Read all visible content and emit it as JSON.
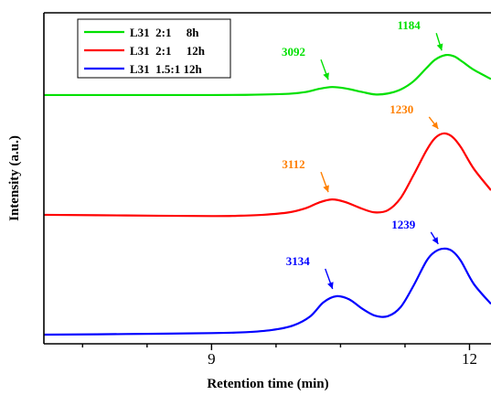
{
  "chart_data": {
    "type": "line",
    "xlabel": "Retention time (min)",
    "ylabel": "Intensity (a.u.)",
    "xlim": [
      7.05,
      12.25
    ],
    "ylim": [
      0,
      1
    ],
    "x_ticks": [
      9,
      12
    ],
    "x_tick_labels": [
      "9",
      "12"
    ],
    "y_ticks_shown": false,
    "grid": false,
    "legend_position": "top-left",
    "series": [
      {
        "name": "L31  2:1     8h",
        "color": "#00e000",
        "x": [
          7.05,
          8.0,
          9.0,
          9.5,
          9.9,
          10.1,
          10.25,
          10.4,
          10.55,
          10.75,
          10.9,
          11.05,
          11.2,
          11.35,
          11.5,
          11.6,
          11.72,
          11.82,
          11.92,
          12.05,
          12.25
        ],
        "y": [
          0.78,
          0.78,
          0.78,
          0.781,
          0.784,
          0.79,
          0.8,
          0.806,
          0.802,
          0.79,
          0.782,
          0.785,
          0.798,
          0.825,
          0.868,
          0.895,
          0.91,
          0.906,
          0.888,
          0.862,
          0.832
        ]
      },
      {
        "name": "L31  2:1     12h",
        "color": "#ff0000",
        "x": [
          7.05,
          8.0,
          9.0,
          9.3,
          9.6,
          9.9,
          10.1,
          10.25,
          10.4,
          10.55,
          10.75,
          10.9,
          11.05,
          11.2,
          11.35,
          11.5,
          11.6,
          11.7,
          11.8,
          11.9,
          12.05,
          12.25
        ],
        "y": [
          0.39,
          0.388,
          0.386,
          0.387,
          0.39,
          0.398,
          0.412,
          0.43,
          0.44,
          0.432,
          0.41,
          0.398,
          0.405,
          0.445,
          0.52,
          0.6,
          0.64,
          0.655,
          0.644,
          0.61,
          0.54,
          0.47
        ]
      },
      {
        "name": "L31  1.5:1 12h",
        "color": "#0000ff",
        "x": [
          7.05,
          8.0,
          9.0,
          9.4,
          9.7,
          9.95,
          10.15,
          10.3,
          10.45,
          10.6,
          10.75,
          10.9,
          11.05,
          11.2,
          11.35,
          11.5,
          11.6,
          11.7,
          11.8,
          11.9,
          12.05,
          12.25
        ],
        "y": [
          0.0,
          0.002,
          0.005,
          0.008,
          0.015,
          0.03,
          0.06,
          0.105,
          0.125,
          0.115,
          0.085,
          0.062,
          0.06,
          0.09,
          0.16,
          0.24,
          0.27,
          0.28,
          0.272,
          0.24,
          0.165,
          0.1
        ]
      }
    ],
    "annotations": [
      {
        "text": "3092",
        "color": "#00e000",
        "x": 10.4,
        "y": 0.806
      },
      {
        "text": "1184",
        "color": "#00e000",
        "x": 11.72,
        "y": 0.91
      },
      {
        "text": "3112",
        "color": "#ff7f00",
        "x": 10.4,
        "y": 0.44
      },
      {
        "text": "1230",
        "color": "#ff7f00",
        "x": 11.7,
        "y": 0.655
      },
      {
        "text": "3134",
        "color": "#0000ff",
        "x": 10.45,
        "y": 0.125
      },
      {
        "text": "1239",
        "color": "#0000ff",
        "x": 11.7,
        "y": 0.28
      }
    ]
  }
}
